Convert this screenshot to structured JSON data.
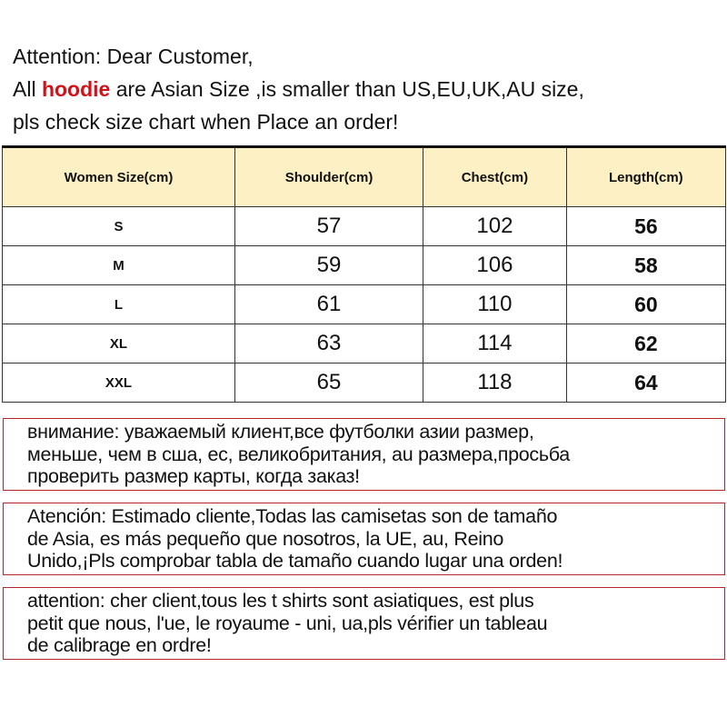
{
  "intro": {
    "line1": "Attention: Dear Customer,",
    "line2_before": "All ",
    "line2_highlight": "hoodie",
    "line2_after": " are  Asian Size ,is smaller than US,EU,UK,AU size,",
    "line3": "pls check size chart when Place an order!",
    "highlight_color": "#d0121b"
  },
  "table": {
    "headers": [
      "Women Size(cm)",
      "Shoulder(cm)",
      "Chest(cm)",
      "Length(cm)"
    ],
    "rows": [
      [
        "S",
        "57",
        "102",
        "56"
      ],
      [
        "M",
        "59",
        "106",
        "58"
      ],
      [
        "L",
        "61",
        "110",
        "60"
      ],
      [
        "XL",
        "63",
        "114",
        "62"
      ],
      [
        "XXL",
        "65",
        "118",
        "64"
      ]
    ],
    "header_bg": "#fdf0c4"
  },
  "notes": [
    {
      "lines": [
        "внимание: уважаемый клиент,все футболки азии размер,",
        "меньше, чем в сша, ес, великобритания, au размера,просьба",
        "проверить размер карты, когда заказ!"
      ]
    },
    {
      "lines": [
        "Atención: Estimado cliente,Todas las camisetas son de tamaño",
        "de Asia, es más pequeño que nosotros, la UE, au, Reino",
        "Unido,¡Pls comprobar tabla de tamaño cuando lugar una orden!"
      ]
    },
    {
      "lines": [
        "attention: cher client,tous les t shirts sont asiatiques, est plus",
        "petit que nous, l'ue, le royaume - uni, ua,pls vérifier un tableau",
        "de calibrage en ordre!"
      ]
    }
  ]
}
